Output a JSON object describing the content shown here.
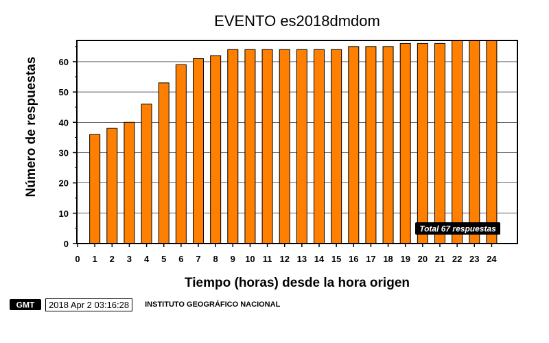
{
  "chart_data": {
    "type": "bar",
    "title": "EVENTO es2018dmdom",
    "xlabel": "Tiempo (horas) desde la hora origen",
    "ylabel": "Número de respuestas",
    "categories": [
      "1",
      "2",
      "3",
      "4",
      "5",
      "6",
      "7",
      "8",
      "9",
      "10",
      "11",
      "12",
      "13",
      "14",
      "15",
      "16",
      "17",
      "18",
      "19",
      "20",
      "21",
      "22",
      "23",
      "24"
    ],
    "values": [
      36,
      38,
      40,
      46,
      53,
      59,
      61,
      62,
      64,
      64,
      64,
      64,
      64,
      64,
      64,
      65,
      65,
      65,
      66,
      66,
      66,
      67,
      67,
      67
    ],
    "x_ticks": [
      "0",
      "1",
      "2",
      "3",
      "4",
      "5",
      "6",
      "7",
      "8",
      "9",
      "10",
      "11",
      "12",
      "13",
      "14",
      "15",
      "16",
      "17",
      "18",
      "19",
      "20",
      "21",
      "22",
      "23",
      "24"
    ],
    "y_ticks": [
      "0",
      "10",
      "20",
      "30",
      "40",
      "50",
      "60"
    ],
    "ylim": [
      0,
      67
    ],
    "grid": "horizontal",
    "annotation": "Total 67 respuestas",
    "bar_color": "#ff7f00"
  },
  "footer": {
    "logo": "GMT",
    "timestamp": "2018 Apr  2 03:16:28",
    "institution": "INSTITUTO GEOGRÁFICO NACIONAL"
  }
}
